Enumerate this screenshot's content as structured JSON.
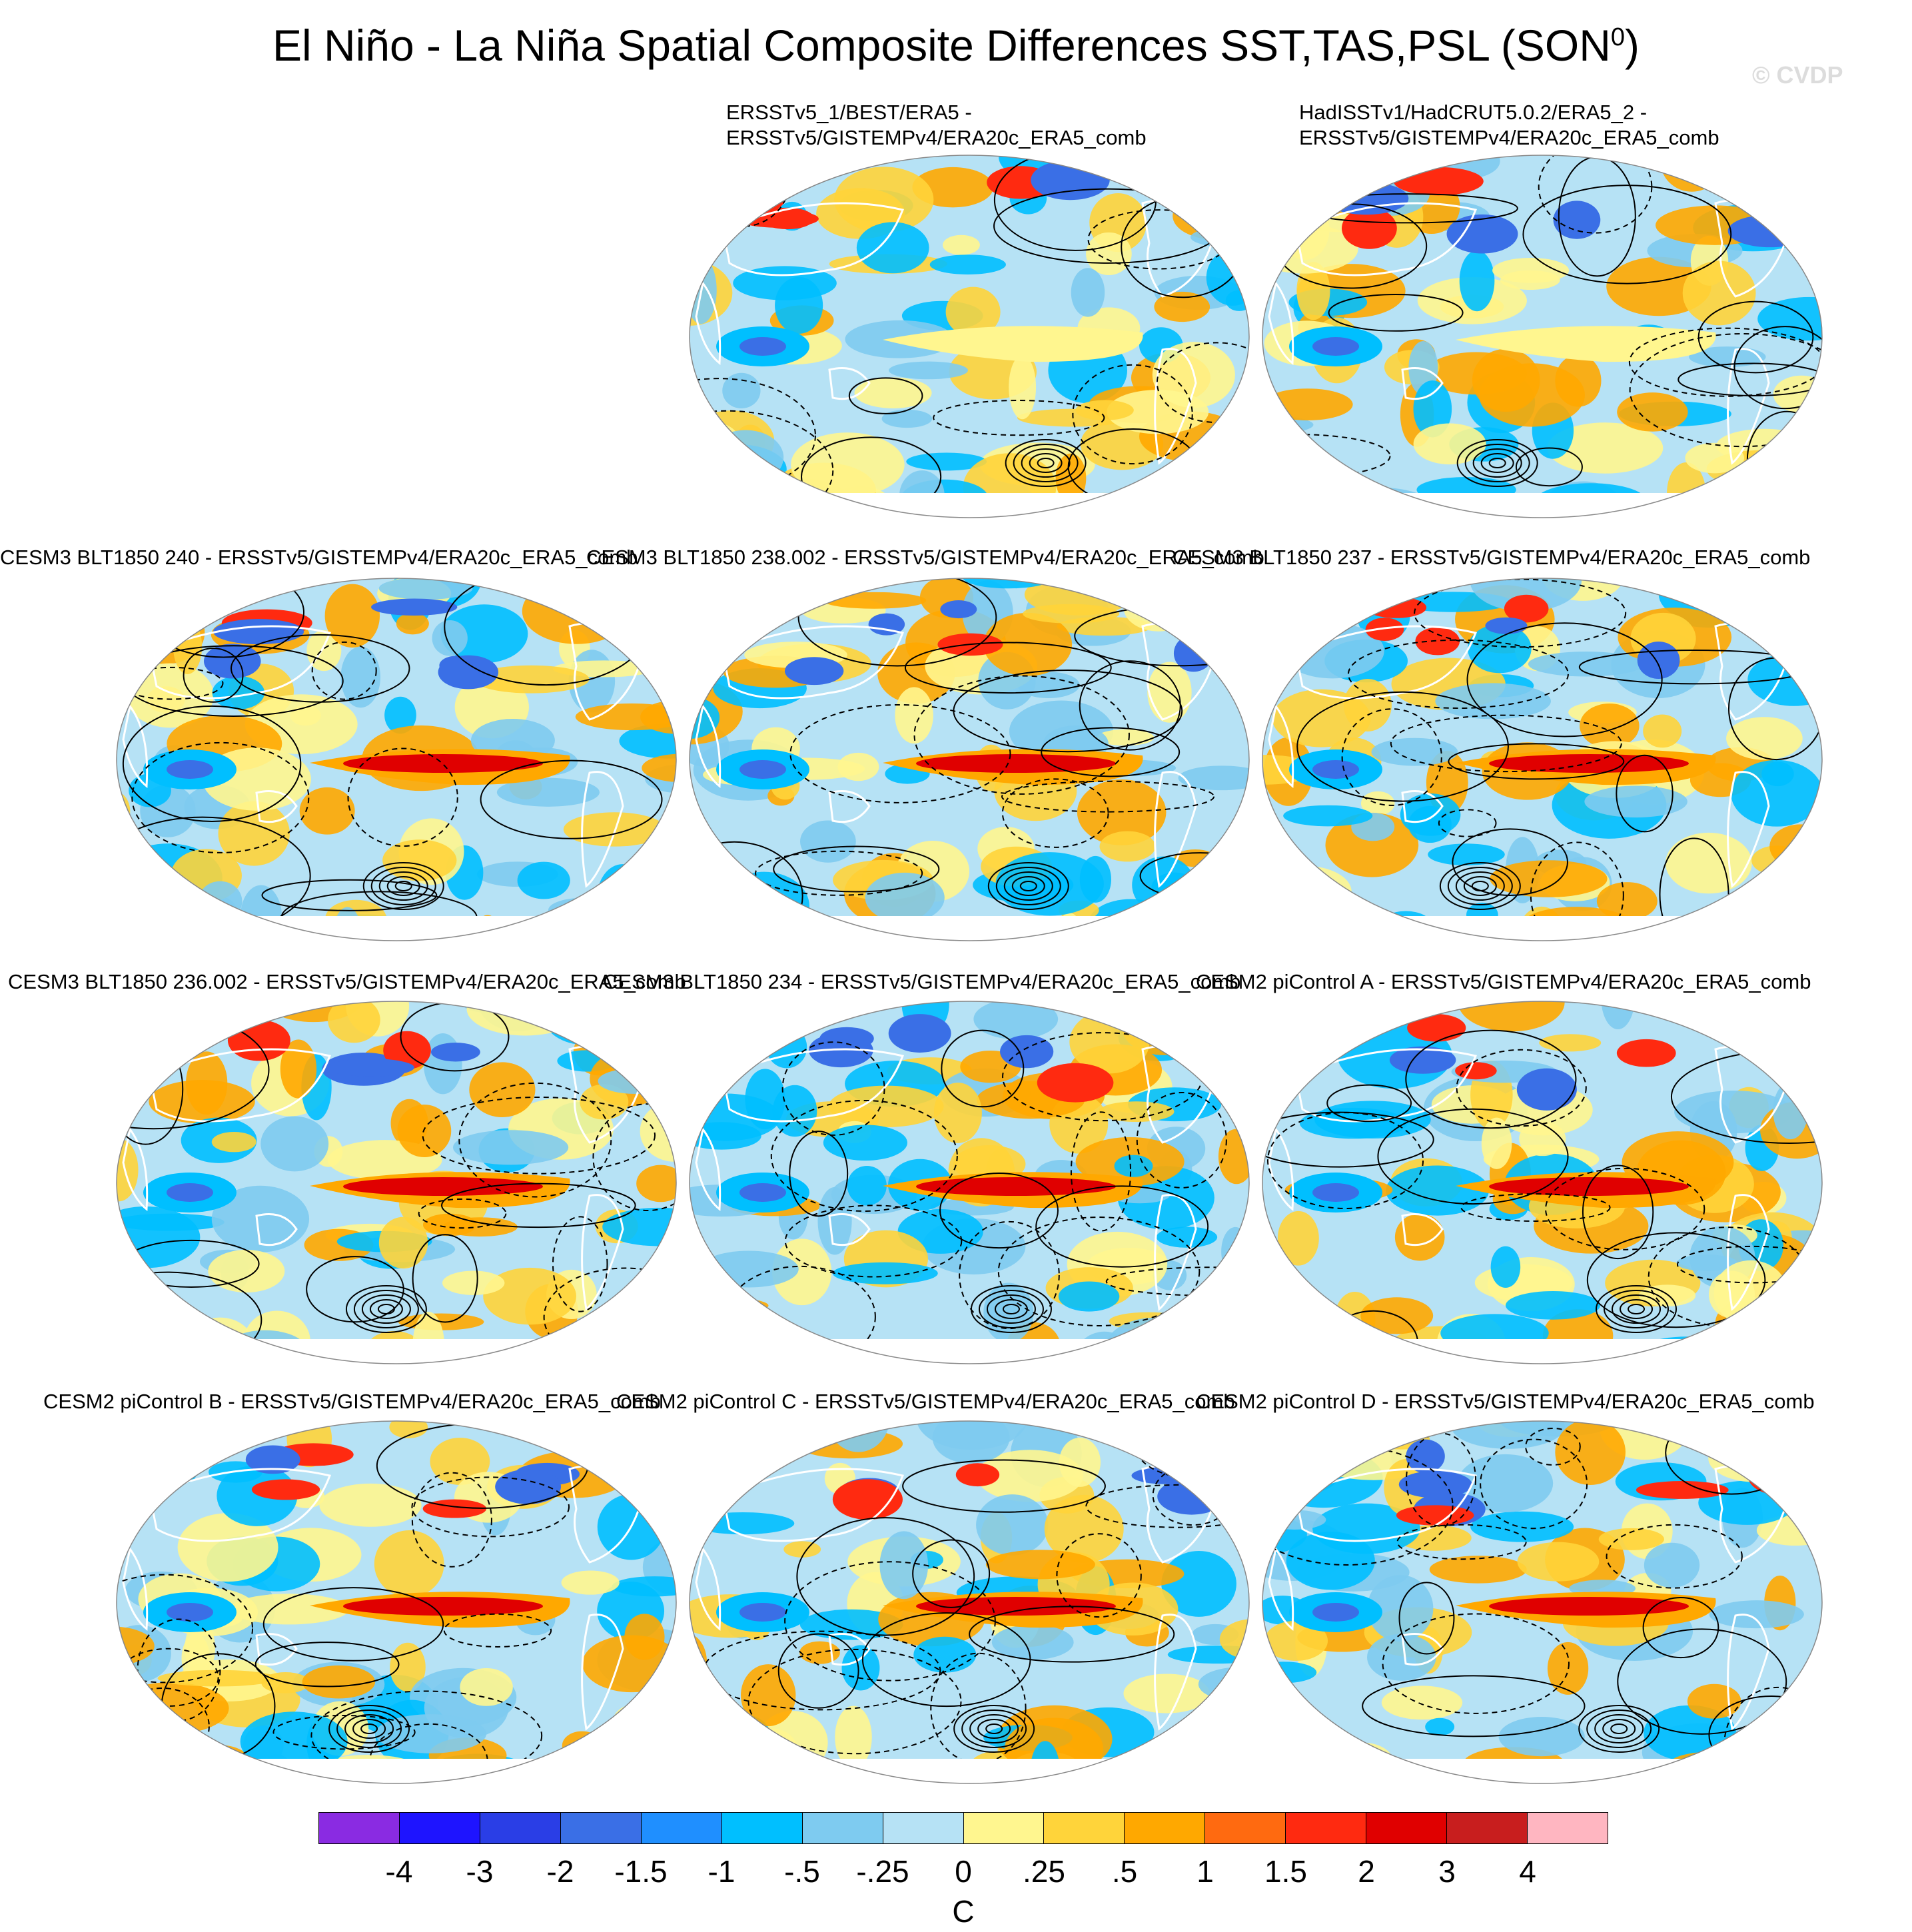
{
  "title": {
    "text": "El Niño - La Niña Spatial Composite Differences SST,TAS,PSL (SON",
    "superscript": "0",
    "close": ")"
  },
  "watermark": "© CVDP",
  "panels": [
    {
      "id": "obs1",
      "line1": "ERSSTv5_1/BEST/ERA5 -",
      "line2": "ERSSTv5/GISTEMPv4/ERA20c_ERA5_comb"
    },
    {
      "id": "obs2",
      "line1": "HadISSTv1/HadCRUT5.0.2/ERA5_2 -",
      "line2": "ERSSTv5/GISTEMPv4/ERA20c_ERA5_comb"
    },
    {
      "id": "m240",
      "line1": "CESM3 BLT1850 240 - ERSSTv5/GISTEMPv4/ERA20c_ERA5_comb"
    },
    {
      "id": "m238",
      "line1": "CESM3 BLT1850 238.002 - ERSSTv5/GISTEMPv4/ERA20c_ERA5_comb"
    },
    {
      "id": "m237",
      "line1": "CESM3 BLT1850 237 - ERSSTv5/GISTEMPv4/ERA20c_ERA5_comb"
    },
    {
      "id": "m236",
      "line1": "CESM3 BLT1850 236.002 - ERSSTv5/GISTEMPv4/ERA20c_ERA5_comb"
    },
    {
      "id": "m234",
      "line1": "CESM3 BLT1850 234 - ERSSTv5/GISTEMPv4/ERA20c_ERA5_comb"
    },
    {
      "id": "pcA",
      "line1": "CESM2 piControl A - ERSSTv5/GISTEMPv4/ERA20c_ERA5_comb"
    },
    {
      "id": "pcB",
      "line1": "CESM2 piControl B - ERSSTv5/GISTEMPv4/ERA20c_ERA5_comb"
    },
    {
      "id": "pcC",
      "line1": "CESM2 piControl C - ERSSTv5/GISTEMPv4/ERA20c_ERA5_comb"
    },
    {
      "id": "pcD",
      "line1": "CESM2 piControl D - ERSSTv5/GISTEMPv4/ERA20c_ERA5_comb"
    }
  ],
  "colorbar": {
    "colors": [
      "#8a2be2",
      "#1e14ff",
      "#2a3ee6",
      "#3a6fe6",
      "#1f8fff",
      "#00bfff",
      "#7ecbf0",
      "#b6e2f5",
      "#fff68f",
      "#ffd43a",
      "#ffa800",
      "#ff6a10",
      "#ff2a10",
      "#e00000",
      "#c81e1e",
      "#ffb6c1"
    ],
    "labels": [
      "-4",
      "-3",
      "-2",
      "-1.5",
      "-1",
      "-.5",
      "-.25",
      "0",
      ".25",
      ".5",
      "1",
      "1.5",
      "2",
      "3",
      "4"
    ],
    "units": "C"
  }
}
